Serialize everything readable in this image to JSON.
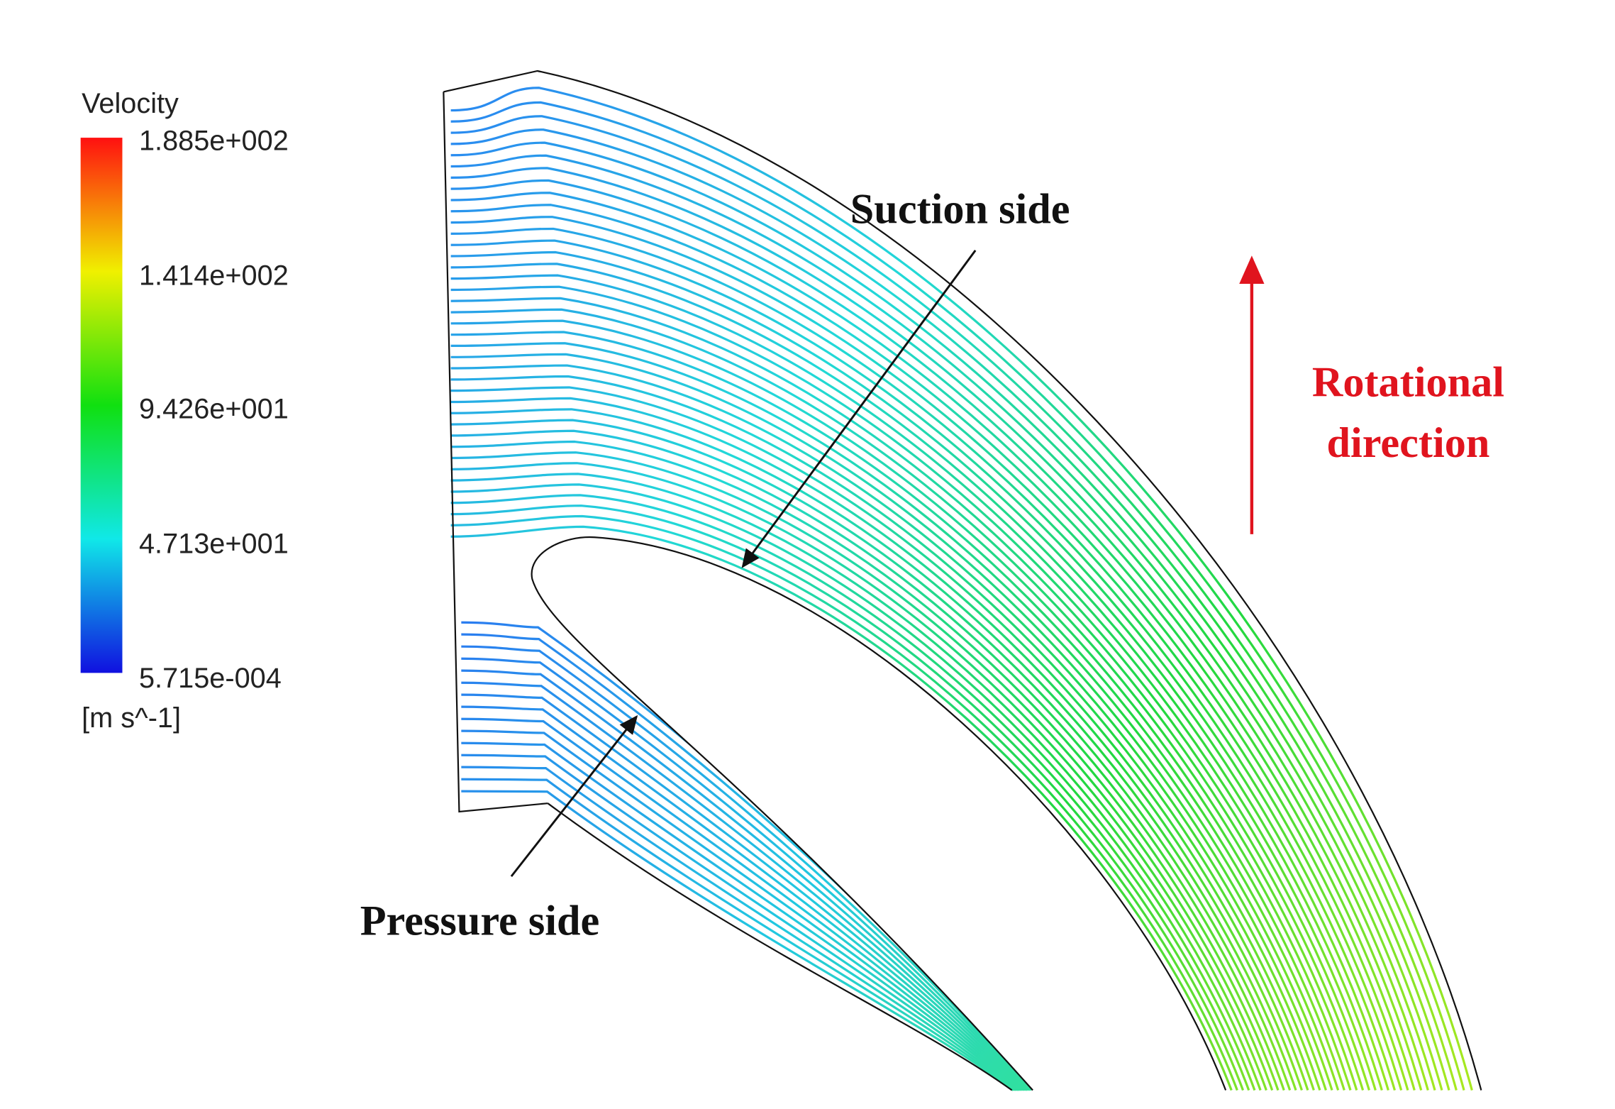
{
  "legend": {
    "title": "Velocity",
    "ticks": [
      "1.885e+002",
      "1.414e+002",
      "9.426e+001",
      "4.713e+001",
      "5.715e-004"
    ],
    "unit": "[m s^-1]"
  },
  "annotations": {
    "suction": "Suction side",
    "pressure": "Pressure side",
    "rotation": [
      "Rotational",
      "direction"
    ]
  }
}
